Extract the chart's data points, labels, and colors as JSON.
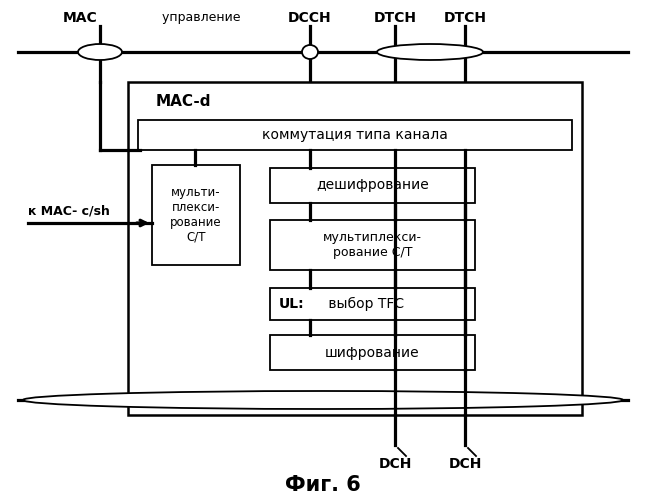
{
  "title": "Фиг. 6",
  "bg": "#ffffff",
  "labels": {
    "mac": "MAC",
    "mac_control": " управление",
    "dcch": "DCCH",
    "dtch1": "DTCH",
    "dtch2": "DTCH",
    "mac_d": "MAC-d",
    "channel_switch": "коммутация типа канала",
    "deciphering": "дешифрование",
    "mux_left": "мульти-\nплекси-\nрование\nС/Т",
    "mux_right": "мультиплекси-\nрование С/Т",
    "ul_bold": "UL:",
    "ul_normal": " выбор TFC",
    "ciphering": "шифрование",
    "to_mac": "к MAC- c/sh",
    "dch1": "DCH",
    "dch2": "DCH"
  },
  "lw_thin": 1.3,
  "lw_thick": 2.3,
  "lw_border": 1.8
}
